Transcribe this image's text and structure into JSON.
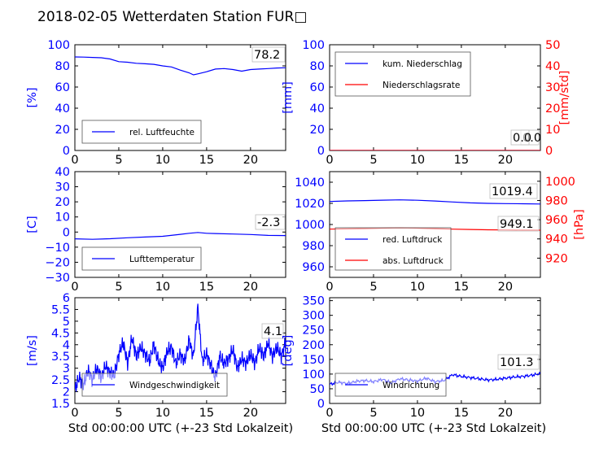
{
  "title": "2018-02-05 Wetterdaten Station FUR□",
  "chart_data": [
    {
      "id": "humidity",
      "type": "line",
      "ylabel": "[%]",
      "xlim": [
        0,
        24
      ],
      "ylim": [
        0,
        100
      ],
      "xticks": [
        0,
        5,
        10,
        15,
        20
      ],
      "yticks": [
        0,
        20,
        40,
        60,
        80,
        100
      ],
      "value_label": "78.2",
      "legend": "lower-left",
      "series": [
        {
          "name": "rel. Luftfeuchte",
          "color": "#0000ff",
          "x": [
            0,
            1,
            2,
            3,
            4,
            5,
            6,
            7,
            8,
            9,
            10,
            11,
            12,
            13,
            13.5,
            14,
            15,
            16,
            17,
            18,
            19,
            20,
            21,
            22,
            23,
            24
          ],
          "y": [
            88.5,
            88.3,
            88.0,
            87.7,
            86.5,
            84.0,
            83.5,
            82.5,
            82.0,
            81.5,
            80.0,
            79.0,
            76.0,
            73.5,
            71.5,
            72.5,
            74.5,
            77.0,
            77.5,
            76.5,
            75.0,
            76.5,
            77.0,
            77.5,
            78.0,
            78.2
          ]
        }
      ]
    },
    {
      "id": "precipitation",
      "type": "line",
      "ylabel": "[mm]",
      "ylabel2": "[mm/std]",
      "xlim": [
        0,
        24
      ],
      "ylim": [
        0,
        100
      ],
      "ylim2": [
        0,
        50
      ],
      "xticks": [
        0,
        5,
        10,
        15,
        20
      ],
      "yticks": [
        0,
        20,
        40,
        60,
        80,
        100
      ],
      "yticks2": [
        0,
        10,
        20,
        30,
        40,
        50
      ],
      "value_label": "0.0",
      "value_label2": "0.0",
      "legend": "top-left",
      "series": [
        {
          "name": "kum. Niederschlag",
          "color": "#0000ff",
          "axis": "left",
          "x": [
            0,
            24
          ],
          "y": [
            0,
            0
          ]
        },
        {
          "name": "Niederschlagsrate",
          "color": "#ff0000",
          "axis": "right",
          "x": [
            0,
            24
          ],
          "y": [
            0,
            0
          ]
        }
      ]
    },
    {
      "id": "temperature",
      "type": "line",
      "ylabel": "[C]",
      "xlim": [
        0,
        24
      ],
      "ylim": [
        -30,
        40
      ],
      "xticks": [
        0,
        5,
        10,
        15,
        20
      ],
      "yticks": [
        -30,
        -20,
        -10,
        0,
        10,
        20,
        30,
        40
      ],
      "value_label": "-2.3",
      "legend": "lower-left",
      "series": [
        {
          "name": "Lufttemperatur",
          "color": "#0000ff",
          "x": [
            0,
            2,
            4,
            6,
            8,
            10,
            12,
            13,
            14,
            15,
            16,
            18,
            20,
            22,
            24
          ],
          "y": [
            -4.5,
            -4.8,
            -4.4,
            -3.8,
            -3.3,
            -2.8,
            -1.5,
            -0.8,
            -0.3,
            -0.8,
            -1.0,
            -1.3,
            -1.6,
            -2.2,
            -2.3
          ]
        }
      ]
    },
    {
      "id": "pressure",
      "type": "line",
      "ylabel2": "[hPa]",
      "xlim": [
        0,
        24
      ],
      "ylim": [
        950,
        1050
      ],
      "ylim2": [
        900,
        1010
      ],
      "xticks": [
        0,
        5,
        10,
        15,
        20
      ],
      "yticks": [
        960,
        980,
        1000,
        1020,
        1040
      ],
      "yticks2": [
        920,
        940,
        960,
        980,
        1000
      ],
      "value_label": "1019.4",
      "value_label2": "949.1",
      "legend": "lower-left",
      "series": [
        {
          "name": "red. Luftdruck",
          "color": "#0000ff",
          "axis": "left",
          "x": [
            0,
            2,
            4,
            6,
            8,
            10,
            12,
            14,
            16,
            18,
            20,
            22,
            24
          ],
          "y": [
            1021.8,
            1022.3,
            1022.6,
            1023.0,
            1023.3,
            1022.9,
            1022.2,
            1021.3,
            1020.5,
            1020.0,
            1019.8,
            1019.6,
            1019.4
          ]
        },
        {
          "name": "abs. Luftdruck",
          "color": "#ff0000",
          "axis": "right",
          "x": [
            0,
            2,
            4,
            6,
            8,
            10,
            12,
            14,
            16,
            18,
            20,
            22,
            24
          ],
          "y": [
            950.2,
            950.5,
            950.8,
            951.2,
            951.5,
            951.2,
            950.7,
            950.2,
            949.8,
            949.5,
            949.3,
            949.2,
            949.1
          ]
        }
      ]
    },
    {
      "id": "windspeed",
      "type": "line",
      "ylabel": "[m/s]",
      "xlim": [
        0,
        24
      ],
      "ylim": [
        1.5,
        6.0
      ],
      "xticks": [
        0,
        5,
        10,
        15,
        20
      ],
      "yticks": [
        1.5,
        2.0,
        2.5,
        3.0,
        3.5,
        4.0,
        4.5,
        5.0,
        5.5,
        6.0
      ],
      "value_label": "4.1",
      "legend": "lower-center",
      "series": [
        {
          "name": "Windgeschwindigkeit",
          "color": "#0000ff",
          "x": [
            0,
            0.5,
            1,
            1.5,
            2,
            2.5,
            3,
            3.5,
            4,
            4.5,
            5,
            5.5,
            6,
            6.5,
            7,
            7.5,
            8,
            8.5,
            9,
            9.5,
            10,
            10.5,
            11,
            11.5,
            12,
            12.5,
            13,
            13.5,
            14,
            14.5,
            15,
            15.5,
            16,
            16.5,
            17,
            17.5,
            18,
            18.5,
            19,
            19.5,
            20,
            20.5,
            21,
            21.5,
            22,
            22.5,
            23,
            23.5,
            24
          ],
          "y": [
            2.1,
            2.6,
            2.3,
            2.9,
            2.5,
            3.0,
            2.6,
            3.1,
            2.8,
            2.7,
            3.6,
            4.1,
            3.2,
            4.3,
            3.5,
            3.9,
            3.6,
            3.3,
            4.0,
            3.3,
            3.0,
            3.7,
            3.9,
            3.2,
            3.6,
            3.3,
            4.2,
            3.5,
            5.6,
            3.3,
            3.6,
            3.1,
            2.6,
            3.5,
            3.2,
            3.4,
            3.8,
            3.0,
            3.4,
            3.2,
            3.6,
            3.2,
            3.9,
            3.5,
            4.1,
            3.5,
            3.9,
            3.5,
            4.1
          ]
        }
      ]
    },
    {
      "id": "winddirection",
      "type": "line",
      "ylabel": "[deg]",
      "xlim": [
        0,
        24
      ],
      "ylim": [
        0,
        360
      ],
      "xticks": [
        0,
        5,
        10,
        15,
        20
      ],
      "yticks": [
        0,
        50,
        100,
        150,
        200,
        250,
        300,
        350
      ],
      "value_label": "101.3",
      "legend": "lower-left",
      "series": [
        {
          "name": "Windrichtung",
          "color": "#0000ff",
          "x": [
            0,
            1,
            2,
            3,
            4,
            5,
            6,
            7,
            8,
            9,
            10,
            11,
            12,
            13,
            14,
            15,
            16,
            17,
            18,
            19,
            20,
            21,
            22,
            23,
            24
          ],
          "y": [
            65,
            72,
            68,
            75,
            78,
            74,
            82,
            70,
            84,
            80,
            76,
            86,
            74,
            78,
            98,
            92,
            88,
            84,
            80,
            82,
            86,
            90,
            92,
            96,
            101.3
          ]
        }
      ]
    }
  ],
  "xlabel": "Std 00:00:00 UTC (+-23 Std Lokalzeit)",
  "colors": {
    "left_axis": "#0000ff",
    "right_axis": "#ff0000",
    "frame": "#000000"
  }
}
